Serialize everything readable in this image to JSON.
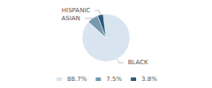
{
  "chart_data": {
    "type": "pie",
    "categories": [
      "BLACK",
      "ASIAN",
      "HISPANIC"
    ],
    "values": [
      88.7,
      7.5,
      3.8
    ],
    "value_labels": [
      "88.7%",
      "7.5%",
      "3.8%"
    ],
    "colors": [
      "#d8e4ef",
      "#7699b0",
      "#2d5978"
    ],
    "legend": "bottom"
  }
}
